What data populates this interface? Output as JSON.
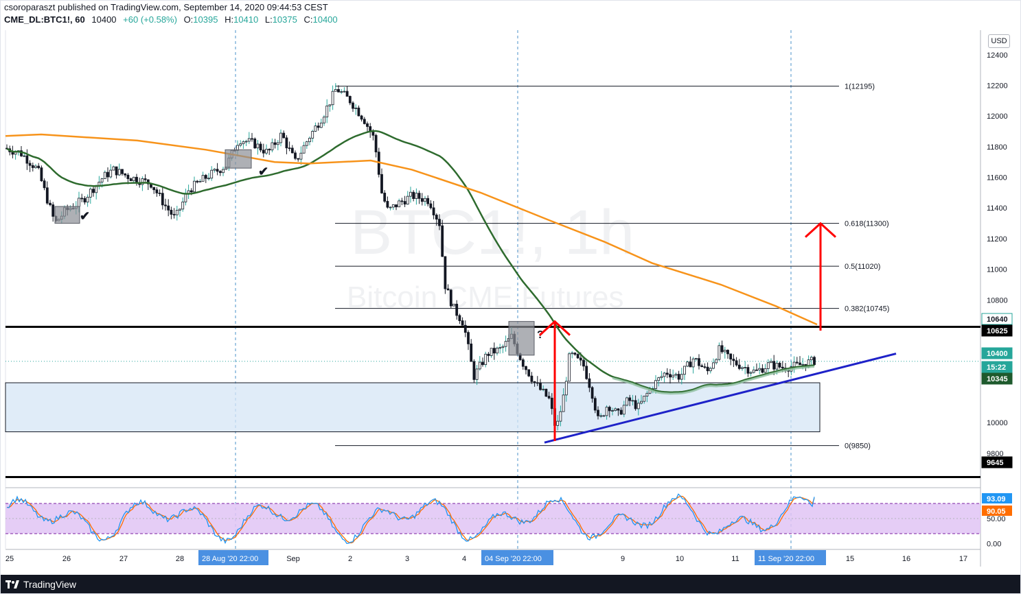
{
  "header": {
    "published_line": "csoroparaszt published on TradingView.com, September 14, 2020 09:44:53 CEST",
    "symbol": "CME_DL:BTC1!, 60",
    "last": "10400",
    "change": "+60 (+0.58%)",
    "o_label": "O:",
    "o": "10395",
    "h_label": "H:",
    "h": "10410",
    "l_label": "L:",
    "l": "10375",
    "c_label": "C:",
    "c": "10400"
  },
  "watermark": {
    "symbol": "BTC1!, 1h",
    "name": "Bitcoin CME Futures"
  },
  "currency": "USD",
  "logo": "TradingView",
  "colors": {
    "bull": "#26a69a",
    "bear": "#ef5350",
    "candle": "#131722",
    "ma_fast": "#2e6b2e",
    "ma_slow": "#f7931a",
    "ma_gray": "#8fbf9f",
    "trendline": "#1e22c8",
    "arrow": "#ff0000",
    "zone": "#d6e6f5",
    "stoch_k": "#2196f3",
    "stoch_d": "#ff6d00",
    "stoch_band": "#e1c4f5"
  },
  "chart_data": {
    "type": "candlestick",
    "ylim": [
      9580,
      12560
    ],
    "y_ticks": [
      12400,
      12200,
      12000,
      11800,
      11600,
      11400,
      11200,
      11000,
      10800,
      10600,
      10400,
      10200,
      10000,
      9800,
      9600
    ],
    "y_tick_labels": [
      "12400",
      "12200",
      "12000",
      "11800",
      "11600",
      "11400",
      "11200",
      "11000",
      "10800",
      "",
      "",
      "",
      "10000",
      "9800",
      ""
    ],
    "x_ticks": [
      "25",
      "26",
      "27",
      "28",
      "Sep",
      "2",
      "3",
      "4",
      "9",
      "10",
      "11",
      "15",
      "16",
      "17"
    ],
    "x_highlights": [
      "28 Aug '20   22:00",
      "04 Sep '20   22:00",
      "11 Sep '20   22:00"
    ],
    "price_labels": [
      {
        "text": "10640",
        "value": 10640,
        "style": "outline-green"
      },
      {
        "text": "10625",
        "value": 10625,
        "style": "black"
      },
      {
        "text": "10400",
        "value": 10400,
        "style": "green"
      },
      {
        "text": "15:22",
        "value": 10300,
        "style": "green"
      },
      {
        "text": "10345",
        "value": 10345,
        "style": "dark-green"
      },
      {
        "text": "9645",
        "value": 9645,
        "style": "black"
      }
    ],
    "fibonacci": [
      {
        "label": "1(12195)",
        "value": 12195
      },
      {
        "label": "0.618(11300)",
        "value": 11300
      },
      {
        "label": "0.5(11020)",
        "value": 11020
      },
      {
        "label": "0.382(10745)",
        "value": 10745
      },
      {
        "label": "0(9850)",
        "value": 9850
      }
    ],
    "horizontal_lines": [
      10625,
      9645
    ],
    "support_zone": [
      9940,
      10260
    ],
    "annotations": [
      "✔",
      "✔",
      "?"
    ],
    "stochastic": {
      "ylim": [
        -10,
        110
      ],
      "band": [
        20,
        80
      ],
      "tick_labels": [
        "50.00",
        "0.00"
      ],
      "tick_values": [
        50,
        0
      ],
      "k_label": "93.09",
      "k_value": 93.09,
      "d_label": "90.05",
      "d_value": 90.05
    }
  }
}
